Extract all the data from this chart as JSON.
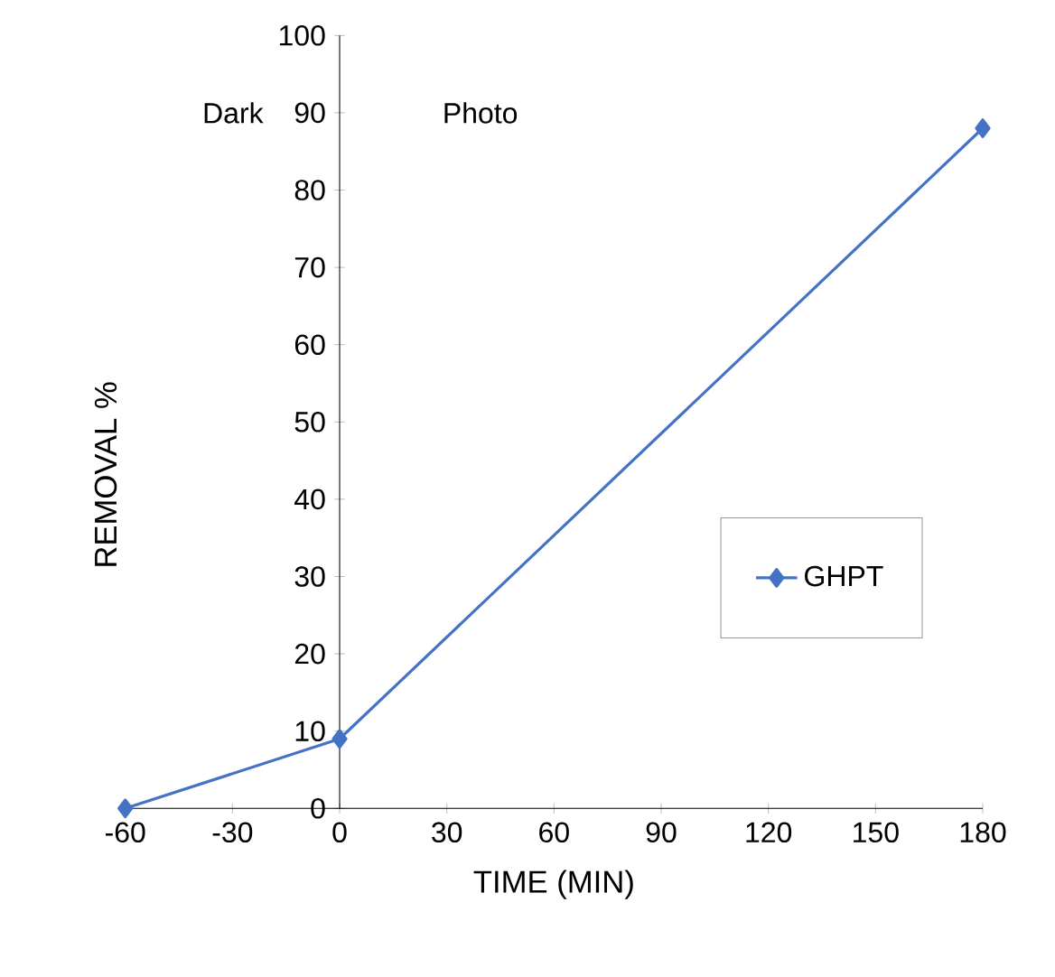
{
  "chart_data": {
    "type": "line",
    "xlabel": "TIME (MIN)",
    "ylabel": "REMOVAL %",
    "annotations": [
      "Dark",
      "Photo"
    ],
    "x": [
      -60,
      0,
      180
    ],
    "series": [
      {
        "name": "GHPT",
        "color": "#4472c4",
        "values": [
          0,
          9,
          88
        ]
      }
    ],
    "xlim": [
      -60,
      180
    ],
    "xticks": [
      -60,
      -30,
      0,
      30,
      60,
      90,
      120,
      150,
      180
    ],
    "ylim": [
      0,
      100
    ],
    "yticks": [
      0,
      10,
      20,
      30,
      40,
      50,
      60,
      70,
      80,
      90,
      100
    ],
    "marker": "diamond",
    "line_style": "solid",
    "grid": false,
    "legend": "bottom right"
  }
}
